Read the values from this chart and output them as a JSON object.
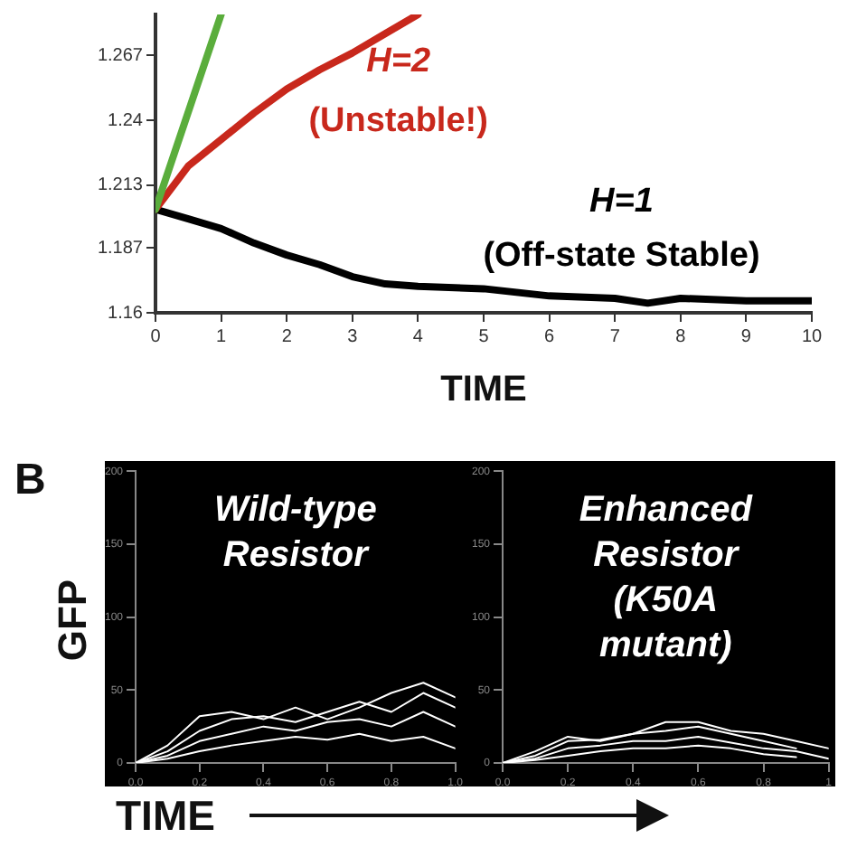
{
  "chart_data": [
    {
      "type": "line",
      "xlabel": "TIME",
      "xlim": [
        0,
        10
      ],
      "xticks": [
        0,
        1,
        2,
        3,
        4,
        5,
        6,
        7,
        8,
        9,
        10
      ],
      "ylim": [
        1.16,
        1.284
      ],
      "yticks": [
        1.16,
        1.187,
        1.213,
        1.24,
        1.267
      ],
      "annotations": [
        "H=2",
        "(Unstable!)",
        "H=1",
        "(Off-state Stable)"
      ],
      "series": [
        {
          "color": "#5aad3c",
          "x": [
            0,
            1.0
          ],
          "values": [
            1.203,
            1.284
          ]
        },
        {
          "color": "#c8281c",
          "x": [
            0,
            0.5,
            1,
            1.5,
            2,
            2.5,
            3,
            3.5,
            4
          ],
          "values": [
            1.203,
            1.221,
            1.232,
            1.243,
            1.253,
            1.261,
            1.268,
            1.276,
            1.284
          ]
        },
        {
          "color": "#000000",
          "x": [
            0,
            0.5,
            1,
            1.5,
            2,
            2.5,
            3,
            3.5,
            4,
            5,
            6,
            7,
            7.5,
            8,
            9,
            10
          ],
          "values": [
            1.203,
            1.199,
            1.195,
            1.189,
            1.184,
            1.18,
            1.175,
            1.172,
            1.171,
            1.17,
            1.167,
            1.166,
            1.164,
            1.166,
            1.165,
            1.165
          ]
        }
      ]
    },
    {
      "type": "line",
      "title": "Wild-type Resistor",
      "xlabel": "TIME",
      "ylabel": "GFP",
      "annotations": [
        "B"
      ],
      "xlim": [
        0,
        1
      ],
      "xticks": [
        {
          "value": 0,
          "label": "0.0"
        },
        {
          "value": 0.2,
          "label": "0.2"
        },
        {
          "value": 0.4,
          "label": "0.4"
        },
        {
          "value": 0.6,
          "label": "0.6"
        },
        {
          "value": 0.8,
          "label": "0.8"
        },
        {
          "value": 1,
          "label": "1.0"
        }
      ],
      "ylim": [
        0,
        200
      ],
      "yticks": [
        0,
        50,
        100,
        150,
        200
      ],
      "x": [
        0,
        0.1,
        0.2,
        0.3,
        0.4,
        0.5,
        0.6,
        0.7,
        0.8,
        0.9,
        1
      ],
      "series": [
        {
          "color": "#ffffff",
          "values": [
            0,
            12,
            32,
            35,
            30,
            38,
            30,
            38,
            48,
            55,
            45
          ]
        },
        {
          "color": "#ffffff",
          "values": [
            0,
            8,
            22,
            30,
            32,
            28,
            35,
            42,
            35,
            48,
            38
          ]
        },
        {
          "color": "#ffffff",
          "values": [
            0,
            5,
            15,
            20,
            25,
            22,
            28,
            30,
            25,
            35,
            25
          ]
        },
        {
          "color": "#ffffff",
          "values": [
            0,
            3,
            8,
            12,
            15,
            18,
            16,
            20,
            15,
            18,
            10
          ]
        }
      ]
    },
    {
      "type": "line",
      "title": "Enhanced Resistor (K50A mutant)",
      "xlim": [
        0,
        1
      ],
      "xticks": [
        {
          "value": 0,
          "label": "0.0"
        },
        {
          "value": 0.2,
          "label": "0.2"
        },
        {
          "value": 0.4,
          "label": "0.4"
        },
        {
          "value": 0.6,
          "label": "0.6"
        },
        {
          "value": 0.8,
          "label": "0.8"
        },
        1
      ],
      "ylim": [
        0,
        200
      ],
      "yticks": [
        0,
        50,
        100,
        150,
        200
      ],
      "x": [
        0,
        0.1,
        0.2,
        0.3,
        0.4,
        0.5,
        0.6,
        0.7,
        0.8,
        0.9,
        1
      ],
      "series": [
        {
          "color": "#ffffff",
          "values": [
            0,
            8,
            18,
            15,
            20,
            28,
            28,
            22,
            20,
            15,
            10
          ]
        },
        {
          "color": "#ffffff",
          "values": [
            0,
            5,
            15,
            16,
            20,
            22,
            25,
            20,
            15,
            10,
            null
          ]
        },
        {
          "color": "#ffffff",
          "values": [
            0,
            3,
            10,
            12,
            15,
            15,
            18,
            14,
            10,
            8,
            3
          ]
        },
        {
          "color": "#ffffff",
          "values": [
            0,
            2,
            5,
            8,
            10,
            10,
            12,
            10,
            6,
            4,
            null
          ]
        }
      ]
    }
  ]
}
